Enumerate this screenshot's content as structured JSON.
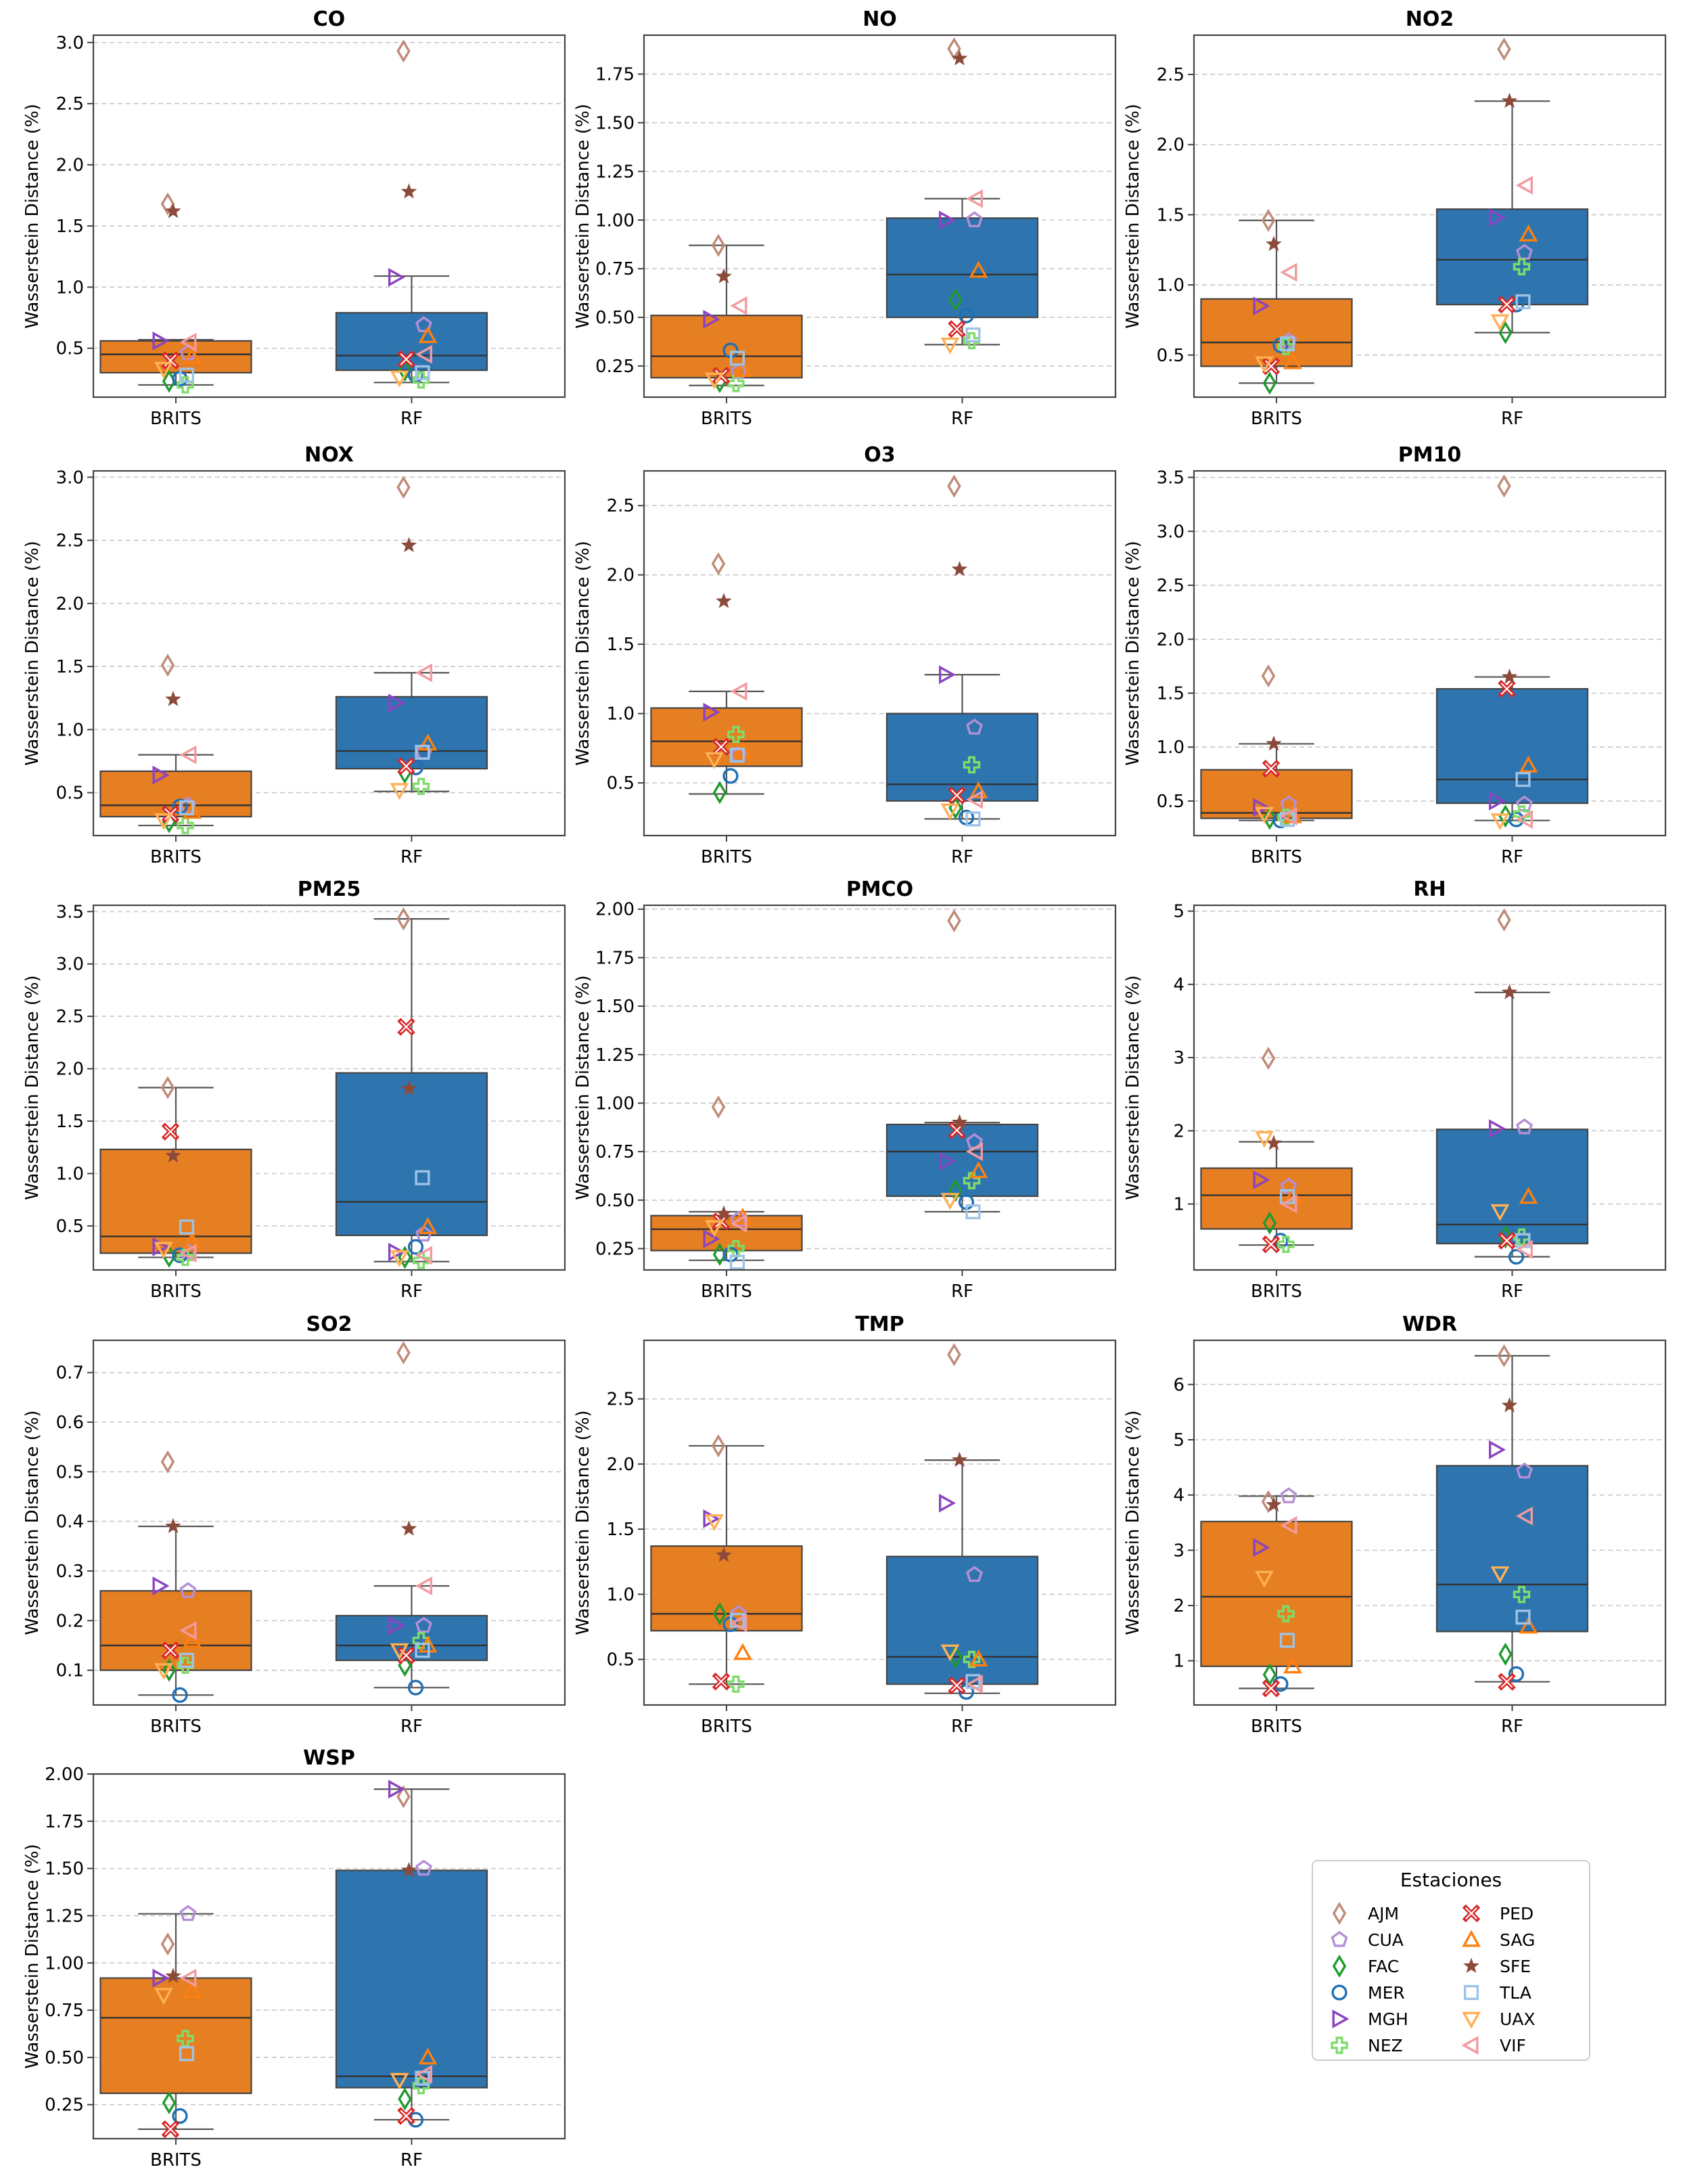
{
  "figure": {
    "ylabel": "Wasserstein Distance (%)",
    "groups": [
      "BRITS",
      "RF"
    ],
    "group_colors": [
      "#e67e22",
      "#2e75b0"
    ]
  },
  "legend": {
    "title": "Estaciones",
    "placement": "bottom-right",
    "items": [
      {
        "label": "AJM",
        "marker": "diamond",
        "color": "#c08a78"
      },
      {
        "label": "CUA",
        "marker": "pentagon",
        "color": "#b48fd6"
      },
      {
        "label": "FAC",
        "marker": "diamond",
        "color": "#1f9a2e"
      },
      {
        "label": "MER",
        "marker": "circle",
        "color": "#1f6fb4"
      },
      {
        "label": "MGH",
        "marker": "triangle-right",
        "color": "#8b44c2"
      },
      {
        "label": "NEZ",
        "marker": "plus",
        "color": "#7fdc6a"
      },
      {
        "label": "PED",
        "marker": "x-thick",
        "color": "#d62728"
      },
      {
        "label": "SAG",
        "marker": "triangle-up",
        "color": "#ff7f0e"
      },
      {
        "label": "SFE",
        "marker": "star",
        "color": "#8c4a3a"
      },
      {
        "label": "TLA",
        "marker": "square",
        "color": "#9ec3e6"
      },
      {
        "label": "UAX",
        "marker": "triangle-down",
        "color": "#ffb055"
      },
      {
        "label": "VIF",
        "marker": "triangle-left",
        "color": "#f29aa0"
      }
    ]
  },
  "chart_data": [
    {
      "type": "box",
      "title": "CO",
      "ylim": [
        0.1,
        3.06
      ],
      "yticks": [
        0.5,
        1.0,
        1.5,
        2.0,
        2.5,
        3.0
      ],
      "tick_decimals": 1,
      "boxes": [
        {
          "q1": 0.3,
          "median": 0.45,
          "q3": 0.56,
          "whisker_low": 0.2,
          "whisker_high": 0.57
        },
        {
          "q1": 0.32,
          "median": 0.44,
          "q3": 0.79,
          "whisker_low": 0.22,
          "whisker_high": 1.09
        }
      ],
      "points": {
        "BRITS": {
          "AJM": 1.68,
          "CUA": 0.46,
          "FAC": 0.23,
          "MER": 0.25,
          "MGH": 0.56,
          "NEZ": 0.2,
          "PED": 0.4,
          "SAG": 0.43,
          "SFE": 1.62,
          "TLA": 0.28,
          "UAX": 0.33,
          "VIF": 0.55
        },
        "RF": {
          "AJM": 2.93,
          "CUA": 0.69,
          "FAC": 0.32,
          "MER": 0.28,
          "MGH": 1.08,
          "NEZ": 0.24,
          "PED": 0.41,
          "SAG": 0.6,
          "SFE": 1.78,
          "TLA": 0.3,
          "UAX": 0.26,
          "VIF": 0.45
        }
      }
    },
    {
      "type": "box",
      "title": "NO",
      "ylim": [
        0.09,
        1.95
      ],
      "yticks": [
        0.25,
        0.5,
        0.75,
        1.0,
        1.25,
        1.5,
        1.75
      ],
      "tick_decimals": 2,
      "boxes": [
        {
          "q1": 0.19,
          "median": 0.3,
          "q3": 0.51,
          "whisker_low": 0.15,
          "whisker_high": 0.87
        },
        {
          "q1": 0.5,
          "median": 0.72,
          "q3": 1.01,
          "whisker_low": 0.36,
          "whisker_high": 1.11
        }
      ],
      "points": {
        "BRITS": {
          "AJM": 0.87,
          "CUA": 0.22,
          "FAC": 0.17,
          "MER": 0.33,
          "MGH": 0.49,
          "NEZ": 0.16,
          "PED": 0.2,
          "SAG": 0.23,
          "SFE": 0.71,
          "TLA": 0.29,
          "UAX": 0.18,
          "VIF": 0.56
        },
        "RF": {
          "AJM": 1.88,
          "CUA": 1.0,
          "FAC": 0.59,
          "MER": 0.51,
          "MGH": 1.0,
          "NEZ": 0.38,
          "PED": 0.44,
          "SAG": 0.74,
          "SFE": 1.83,
          "TLA": 0.41,
          "UAX": 0.36,
          "VIF": 1.11
        }
      }
    },
    {
      "type": "box",
      "title": "NO2",
      "ylim": [
        0.2,
        2.78
      ],
      "yticks": [
        0.5,
        1.0,
        1.5,
        2.0,
        2.5
      ],
      "tick_decimals": 1,
      "boxes": [
        {
          "q1": 0.42,
          "median": 0.59,
          "q3": 0.9,
          "whisker_low": 0.3,
          "whisker_high": 1.46
        },
        {
          "q1": 0.86,
          "median": 1.18,
          "q3": 1.54,
          "whisker_low": 0.66,
          "whisker_high": 2.31
        }
      ],
      "points": {
        "BRITS": {
          "AJM": 1.46,
          "CUA": 0.6,
          "FAC": 0.3,
          "MER": 0.57,
          "MGH": 0.85,
          "NEZ": 0.56,
          "PED": 0.42,
          "SAG": 0.45,
          "SFE": 1.29,
          "TLA": 0.58,
          "UAX": 0.44,
          "VIF": 1.09
        },
        "RF": {
          "AJM": 2.68,
          "CUA": 1.23,
          "FAC": 0.66,
          "MER": 0.86,
          "MGH": 1.48,
          "NEZ": 1.13,
          "PED": 0.86,
          "SAG": 1.36,
          "SFE": 2.31,
          "TLA": 0.88,
          "UAX": 0.74,
          "VIF": 1.71
        }
      }
    },
    {
      "type": "box",
      "title": "NOX",
      "ylim": [
        0.16,
        3.05
      ],
      "yticks": [
        0.5,
        1.0,
        1.5,
        2.0,
        2.5,
        3.0
      ],
      "tick_decimals": 1,
      "boxes": [
        {
          "q1": 0.31,
          "median": 0.4,
          "q3": 0.67,
          "whisker_low": 0.24,
          "whisker_high": 0.8
        },
        {
          "q1": 0.69,
          "median": 0.83,
          "q3": 1.26,
          "whisker_low": 0.51,
          "whisker_high": 1.45
        }
      ],
      "points": {
        "BRITS": {
          "AJM": 1.51,
          "CUA": 0.4,
          "FAC": 0.27,
          "MER": 0.39,
          "MGH": 0.64,
          "NEZ": 0.24,
          "PED": 0.33,
          "SAG": 0.35,
          "SFE": 1.24,
          "TLA": 0.38,
          "UAX": 0.28,
          "VIF": 0.8
        },
        "RF": {
          "AJM": 2.92,
          "CUA": 0.82,
          "FAC": 0.66,
          "MER": 0.7,
          "MGH": 1.21,
          "NEZ": 0.55,
          "PED": 0.71,
          "SAG": 0.89,
          "SFE": 2.46,
          "TLA": 0.82,
          "UAX": 0.52,
          "VIF": 1.45
        }
      }
    },
    {
      "type": "box",
      "title": "O3",
      "ylim": [
        0.12,
        2.75
      ],
      "yticks": [
        0.5,
        1.0,
        1.5,
        2.0,
        2.5
      ],
      "tick_decimals": 1,
      "boxes": [
        {
          "q1": 0.62,
          "median": 0.8,
          "q3": 1.04,
          "whisker_low": 0.42,
          "whisker_high": 1.16
        },
        {
          "q1": 0.37,
          "median": 0.49,
          "q3": 1.0,
          "whisker_low": 0.24,
          "whisker_high": 1.28
        }
      ],
      "points": {
        "BRITS": {
          "AJM": 2.08,
          "CUA": 0.7,
          "FAC": 0.43,
          "MER": 0.55,
          "MGH": 1.01,
          "NEZ": 0.85,
          "PED": 0.76,
          "SAG": 0.73,
          "SFE": 1.81,
          "TLA": 0.7,
          "UAX": 0.67,
          "VIF": 1.16
        },
        "RF": {
          "AJM": 2.64,
          "CUA": 0.9,
          "FAC": 0.32,
          "MER": 0.25,
          "MGH": 1.28,
          "NEZ": 0.63,
          "PED": 0.41,
          "SAG": 0.44,
          "SFE": 2.04,
          "TLA": 0.24,
          "UAX": 0.3,
          "VIF": 0.38
        }
      }
    },
    {
      "type": "box",
      "title": "PM10",
      "ylim": [
        0.18,
        3.56
      ],
      "yticks": [
        0.5,
        1.0,
        1.5,
        2.0,
        2.5,
        3.0,
        3.5
      ],
      "tick_decimals": 1,
      "boxes": [
        {
          "q1": 0.34,
          "median": 0.39,
          "q3": 0.79,
          "whisker_low": 0.32,
          "whisker_high": 1.03
        },
        {
          "q1": 0.48,
          "median": 0.7,
          "q3": 1.54,
          "whisker_low": 0.32,
          "whisker_high": 1.65
        }
      ],
      "points": {
        "BRITS": {
          "AJM": 1.66,
          "CUA": 0.47,
          "FAC": 0.34,
          "MER": 0.32,
          "MGH": 0.44,
          "NEZ": 0.35,
          "PED": 0.8,
          "SAG": 0.36,
          "SFE": 1.03,
          "TLA": 0.33,
          "UAX": 0.38,
          "VIF": 0.36
        },
        "RF": {
          "AJM": 3.42,
          "CUA": 0.47,
          "FAC": 0.36,
          "MER": 0.33,
          "MGH": 0.5,
          "NEZ": 0.38,
          "PED": 1.54,
          "SAG": 0.83,
          "SFE": 1.65,
          "TLA": 0.7,
          "UAX": 0.32,
          "VIF": 0.33
        }
      }
    },
    {
      "type": "box",
      "title": "PM25",
      "ylim": [
        0.08,
        3.56
      ],
      "yticks": [
        0.5,
        1.0,
        1.5,
        2.0,
        2.5,
        3.0,
        3.5
      ],
      "tick_decimals": 1,
      "boxes": [
        {
          "q1": 0.24,
          "median": 0.4,
          "q3": 1.23,
          "whisker_low": 0.2,
          "whisker_high": 1.82
        },
        {
          "q1": 0.41,
          "median": 0.73,
          "q3": 1.96,
          "whisker_low": 0.16,
          "whisker_high": 3.43
        }
      ],
      "points": {
        "BRITS": {
          "AJM": 1.82,
          "CUA": 0.25,
          "FAC": 0.21,
          "MER": 0.22,
          "MGH": 0.3,
          "NEZ": 0.2,
          "PED": 1.4,
          "SAG": 0.35,
          "SFE": 1.17,
          "TLA": 0.49,
          "UAX": 0.28,
          "VIF": 0.24
        },
        "RF": {
          "AJM": 3.43,
          "CUA": 0.42,
          "FAC": 0.2,
          "MER": 0.3,
          "MGH": 0.25,
          "NEZ": 0.17,
          "PED": 2.4,
          "SAG": 0.49,
          "SFE": 1.81,
          "TLA": 0.96,
          "UAX": 0.2,
          "VIF": 0.22
        }
      }
    },
    {
      "type": "box",
      "title": "PMCO",
      "ylim": [
        0.14,
        2.02
      ],
      "yticks": [
        0.25,
        0.5,
        0.75,
        1.0,
        1.25,
        1.5,
        1.75,
        2.0
      ],
      "tick_decimals": 2,
      "boxes": [
        {
          "q1": 0.24,
          "median": 0.35,
          "q3": 0.42,
          "whisker_low": 0.19,
          "whisker_high": 0.44
        },
        {
          "q1": 0.52,
          "median": 0.75,
          "q3": 0.89,
          "whisker_low": 0.44,
          "whisker_high": 0.9
        }
      ],
      "points": {
        "BRITS": {
          "AJM": 0.98,
          "CUA": 0.4,
          "FAC": 0.22,
          "MER": 0.22,
          "MGH": 0.3,
          "NEZ": 0.25,
          "PED": 0.39,
          "SAG": 0.41,
          "SFE": 0.43,
          "TLA": 0.18,
          "UAX": 0.36,
          "VIF": 0.38
        },
        "RF": {
          "AJM": 1.94,
          "CUA": 0.8,
          "FAC": 0.55,
          "MER": 0.49,
          "MGH": 0.7,
          "NEZ": 0.6,
          "PED": 0.86,
          "SAG": 0.65,
          "SFE": 0.9,
          "TLA": 0.44,
          "UAX": 0.5,
          "VIF": 0.75
        }
      }
    },
    {
      "type": "box",
      "title": "RH",
      "ylim": [
        0.1,
        5.08
      ],
      "yticks": [
        1,
        2,
        3,
        4,
        5
      ],
      "tick_decimals": 0,
      "boxes": [
        {
          "q1": 0.66,
          "median": 1.12,
          "q3": 1.49,
          "whisker_low": 0.44,
          "whisker_high": 1.85
        },
        {
          "q1": 0.46,
          "median": 0.72,
          "q3": 2.02,
          "whisker_low": 0.28,
          "whisker_high": 3.89
        }
      ],
      "points": {
        "BRITS": {
          "AJM": 2.99,
          "CUA": 1.24,
          "FAC": 0.74,
          "MER": 0.5,
          "MGH": 1.33,
          "NEZ": 0.45,
          "PED": 0.45,
          "SAG": 1.1,
          "SFE": 1.83,
          "TLA": 1.1,
          "UAX": 1.9,
          "VIF": 1.0
        },
        "RF": {
          "AJM": 4.88,
          "CUA": 2.05,
          "FAC": 0.55,
          "MER": 0.28,
          "MGH": 2.03,
          "NEZ": 0.55,
          "PED": 0.5,
          "SAG": 1.1,
          "SFE": 3.89,
          "TLA": 0.5,
          "UAX": 0.9,
          "VIF": 0.38
        }
      }
    },
    {
      "type": "box",
      "title": "SO2",
      "ylim": [
        0.03,
        0.765
      ],
      "yticks": [
        0.1,
        0.2,
        0.3,
        0.4,
        0.5,
        0.6,
        0.7
      ],
      "tick_decimals": 1,
      "boxes": [
        {
          "q1": 0.1,
          "median": 0.15,
          "q3": 0.26,
          "whisker_low": 0.05,
          "whisker_high": 0.39
        },
        {
          "q1": 0.12,
          "median": 0.15,
          "q3": 0.21,
          "whisker_low": 0.065,
          "whisker_high": 0.27
        }
      ],
      "points": {
        "BRITS": {
          "AJM": 0.52,
          "CUA": 0.26,
          "FAC": 0.1,
          "MER": 0.05,
          "MGH": 0.27,
          "NEZ": 0.11,
          "PED": 0.14,
          "SAG": 0.16,
          "SFE": 0.39,
          "TLA": 0.12,
          "UAX": 0.1,
          "VIF": 0.18
        },
        "RF": {
          "AJM": 0.74,
          "CUA": 0.19,
          "FAC": 0.11,
          "MER": 0.065,
          "MGH": 0.19,
          "NEZ": 0.16,
          "PED": 0.13,
          "SAG": 0.15,
          "SFE": 0.385,
          "TLA": 0.14,
          "UAX": 0.14,
          "VIF": 0.27
        }
      }
    },
    {
      "type": "box",
      "title": "TMP",
      "ylim": [
        0.15,
        2.95
      ],
      "yticks": [
        0.5,
        1.0,
        1.5,
        2.0,
        2.5
      ],
      "tick_decimals": 1,
      "boxes": [
        {
          "q1": 0.72,
          "median": 0.85,
          "q3": 1.37,
          "whisker_low": 0.31,
          "whisker_high": 2.14
        },
        {
          "q1": 0.31,
          "median": 0.52,
          "q3": 1.29,
          "whisker_low": 0.24,
          "whisker_high": 2.03
        }
      ],
      "points": {
        "BRITS": {
          "AJM": 2.14,
          "CUA": 0.85,
          "FAC": 0.85,
          "MER": 0.77,
          "MGH": 1.58,
          "NEZ": 0.31,
          "PED": 0.33,
          "SAG": 0.55,
          "SFE": 1.3,
          "TLA": 0.8,
          "UAX": 1.56,
          "VIF": 0.78
        },
        "RF": {
          "AJM": 2.84,
          "CUA": 1.15,
          "FAC": 0.52,
          "MER": 0.25,
          "MGH": 1.7,
          "NEZ": 0.5,
          "PED": 0.3,
          "SAG": 0.5,
          "SFE": 2.03,
          "TLA": 0.33,
          "UAX": 0.56,
          "VIF": 0.31
        }
      }
    },
    {
      "type": "box",
      "title": "WDR",
      "ylim": [
        0.2,
        6.8
      ],
      "yticks": [
        1,
        2,
        3,
        4,
        5,
        6
      ],
      "tick_decimals": 0,
      "boxes": [
        {
          "q1": 0.9,
          "median": 2.16,
          "q3": 3.52,
          "whisker_low": 0.5,
          "whisker_high": 3.98
        },
        {
          "q1": 1.53,
          "median": 2.38,
          "q3": 4.53,
          "whisker_low": 0.62,
          "whisker_high": 6.52
        }
      ],
      "points": {
        "BRITS": {
          "AJM": 3.88,
          "CUA": 3.98,
          "FAC": 0.75,
          "MER": 0.58,
          "MGH": 3.05,
          "NEZ": 1.85,
          "PED": 0.5,
          "SAG": 0.9,
          "SFE": 3.82,
          "TLA": 1.37,
          "UAX": 2.5,
          "VIF": 3.45
        },
        "RF": {
          "AJM": 6.52,
          "CUA": 4.43,
          "FAC": 1.12,
          "MER": 0.76,
          "MGH": 4.82,
          "NEZ": 2.2,
          "PED": 0.62,
          "SAG": 1.62,
          "SFE": 5.62,
          "TLA": 1.79,
          "UAX": 2.58,
          "VIF": 3.62
        }
      }
    },
    {
      "type": "box",
      "title": "WSP",
      "ylim": [
        0.07,
        2.0
      ],
      "yticks": [
        0.25,
        0.5,
        0.75,
        1.0,
        1.25,
        1.5,
        1.75,
        2.0
      ],
      "tick_decimals": 2,
      "boxes": [
        {
          "q1": 0.31,
          "median": 0.71,
          "q3": 0.92,
          "whisker_low": 0.12,
          "whisker_high": 1.26
        },
        {
          "q1": 0.34,
          "median": 0.4,
          "q3": 1.49,
          "whisker_low": 0.17,
          "whisker_high": 1.92
        }
      ],
      "points": {
        "BRITS": {
          "AJM": 1.1,
          "CUA": 1.26,
          "FAC": 0.26,
          "MER": 0.19,
          "MGH": 0.92,
          "NEZ": 0.6,
          "PED": 0.12,
          "SAG": 0.85,
          "SFE": 0.93,
          "TLA": 0.52,
          "UAX": 0.83,
          "VIF": 0.92
        },
        "RF": {
          "AJM": 1.88,
          "CUA": 1.5,
          "FAC": 0.28,
          "MER": 0.17,
          "MGH": 1.92,
          "NEZ": 0.35,
          "PED": 0.19,
          "SAG": 0.5,
          "SFE": 1.49,
          "TLA": 0.39,
          "UAX": 0.38,
          "VIF": 0.41
        }
      }
    }
  ]
}
